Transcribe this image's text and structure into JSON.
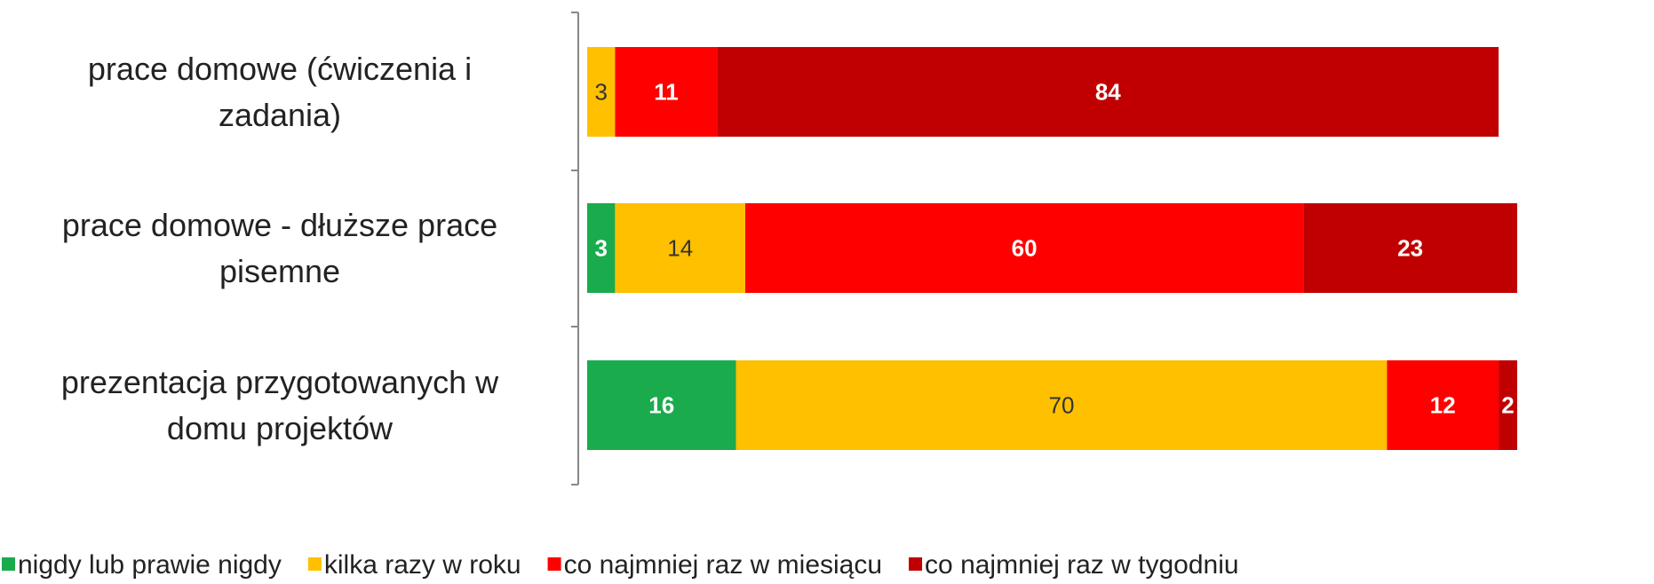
{
  "chart_data": {
    "type": "stacked_bar_horizontal",
    "categories": [
      "prace domowe (ćwiczenia i zadania)",
      "prace domowe - dłuższe prace pisemne",
      "prezentacja przygotowanych w domu projektów"
    ],
    "series": [
      {
        "name": "nigdy lub prawie nigdy",
        "color": "#1aab4c",
        "label_color": "#ffffff",
        "values": [
          null,
          3,
          16
        ]
      },
      {
        "name": "kilka razy w roku",
        "color": "#ffc000",
        "label_color": "#333333",
        "values": [
          3,
          14,
          70
        ]
      },
      {
        "name": "co najmniej raz w miesiącu",
        "color": "#ff0000",
        "label_color": "#ffffff",
        "values": [
          11,
          60,
          12
        ]
      },
      {
        "name": "co najmniej raz w tygodniu",
        "color": "#c00000",
        "label_color": "#ffffff",
        "values": [
          84,
          23,
          2
        ]
      }
    ],
    "xlim": [
      0,
      100
    ],
    "legend": "bottom"
  }
}
